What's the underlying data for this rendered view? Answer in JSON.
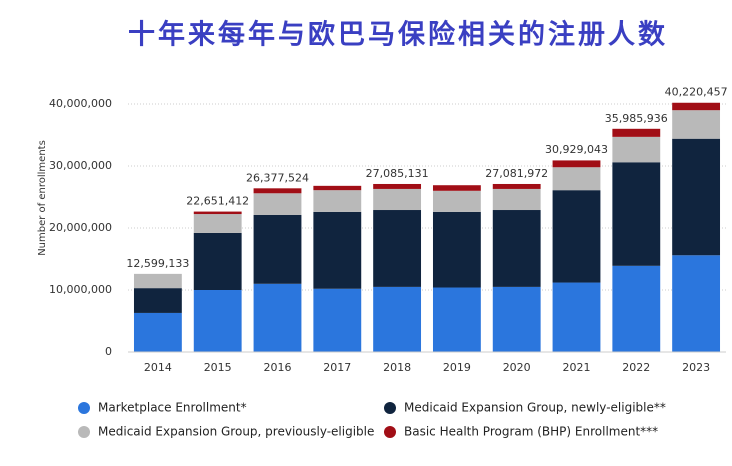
{
  "chart_data": {
    "type": "stacked-bar",
    "title": "十年来每年与欧巴马保险相关的注册人数",
    "y_label": "Number of enrollments",
    "categories": [
      "2014",
      "2015",
      "2016",
      "2017",
      "2018",
      "2019",
      "2020",
      "2021",
      "2022",
      "2023"
    ],
    "series": [
      {
        "name": "Marketplace Enrollment*",
        "color": "#2b76dd",
        "values": [
          6300000,
          10000000,
          11000000,
          10200000,
          10500000,
          10400000,
          10500000,
          11200000,
          13900000,
          15600000
        ]
      },
      {
        "name": "Medicaid Expansion Group, newly-eligible**",
        "color": "#10243e",
        "values": [
          4000000,
          9200000,
          11100000,
          12400000,
          12400000,
          12200000,
          12400000,
          14900000,
          16700000,
          18800000
        ]
      },
      {
        "name": "Medicaid Expansion Group, previously-eligible",
        "color": "#b9b9b9",
        "values": [
          2300000,
          3050000,
          3500000,
          3500000,
          3400000,
          3400000,
          3400000,
          3700000,
          4100000,
          4600000
        ]
      },
      {
        "name": "Basic Health Program (BHP) Enrollment***",
        "color": "#a10e16",
        "values": [
          0,
          400000,
          800000,
          700000,
          800000,
          900000,
          800000,
          1100000,
          1300000,
          1200000
        ]
      }
    ],
    "totals": {
      "values": [
        12599133,
        22651412,
        26377524,
        null,
        27085131,
        null,
        27081972,
        30929043,
        35985936,
        40220457
      ],
      "value_labels": [
        "12,599,133",
        "22,651,412",
        "26,377,524",
        null,
        "27,085,131",
        null,
        "27,081,972",
        "30,929,043",
        "35,985,936",
        "40,220,457"
      ]
    },
    "ylim": [
      0,
      40000000
    ],
    "yticks": [
      0,
      {
        "value": 10000000,
        "label": "10,000,000"
      },
      {
        "value": 20000000,
        "label": "20,000,000"
      },
      {
        "value": 30000000,
        "label": "30,000,000"
      },
      {
        "value": 40000000,
        "label": "40,000,000"
      }
    ],
    "grid": true
  }
}
